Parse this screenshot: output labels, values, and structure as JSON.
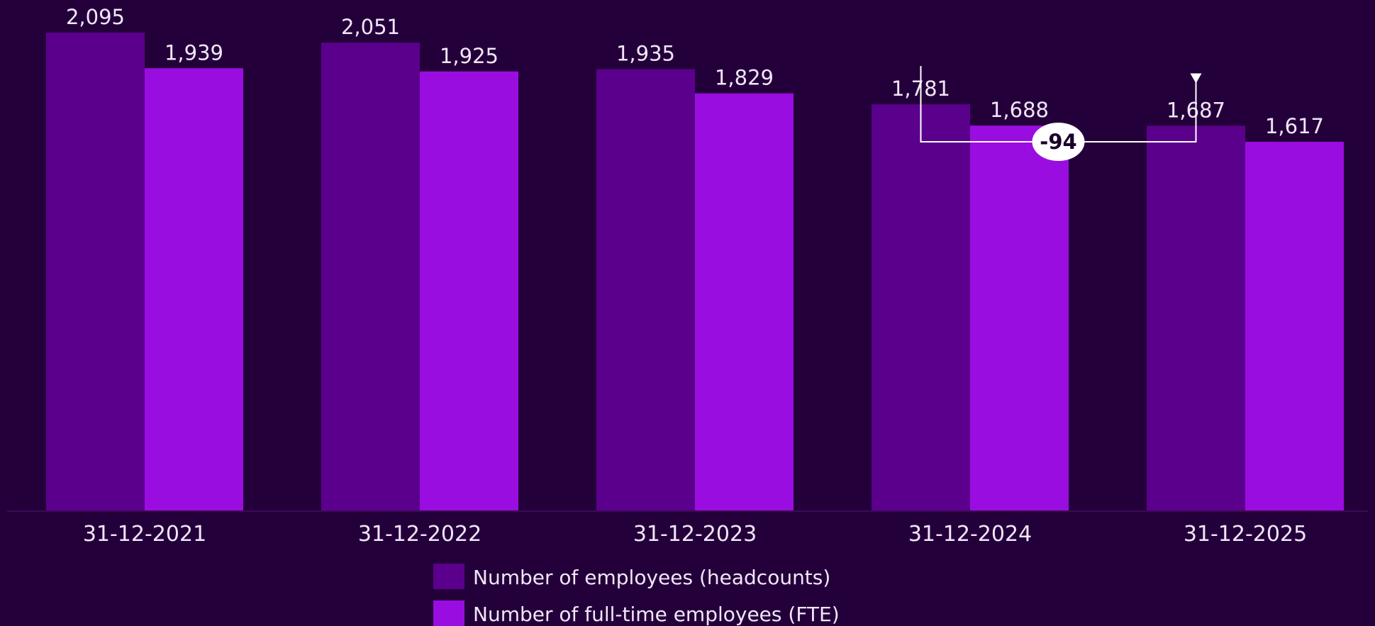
{
  "colors": {
    "background": "#24003a",
    "headcount": "#5b008c",
    "fte": "#9a0de0",
    "text": "#f1e6f8",
    "badge_bg": "#ffffff",
    "badge_text": "#1a0029"
  },
  "chart_data": {
    "type": "bar",
    "categories": [
      "31-12-2021",
      "31-12-2022",
      "31-12-2023",
      "31-12-2024",
      "31-12-2025"
    ],
    "series": [
      {
        "name": "Number of employees (headcounts)",
        "values": [
          2095,
          2051,
          1935,
          1781,
          1687
        ],
        "labels": [
          "2,095",
          "2,051",
          "1,935",
          "1,781",
          "1,687"
        ],
        "color": "#5b008c"
      },
      {
        "name": "Number of full-time employees (FTE)",
        "values": [
          1939,
          1925,
          1829,
          1688,
          1617
        ],
        "labels": [
          "1,939",
          "1,925",
          "1,829",
          "1,688",
          "1,617"
        ],
        "color": "#9a0de0"
      }
    ],
    "ylim": [
      0,
      2095
    ],
    "grid": false,
    "legend_position": "bottom-center",
    "annotation": {
      "text": "-94",
      "from_category": "31-12-2024",
      "to_category": "31-12-2025",
      "series": "Number of employees (headcounts)"
    }
  }
}
